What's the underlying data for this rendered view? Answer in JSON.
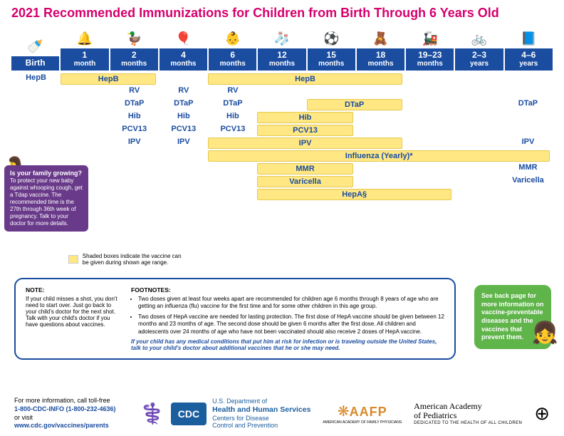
{
  "title": "2021 Recommended Immunizations for Children from Birth Through 6 Years Old",
  "colors": {
    "title": "#d6006d",
    "header_bg": "#1a4ca0",
    "header_fg": "#ffffff",
    "vaccine_text": "#1a4ca0",
    "bar_fill": "#ffe784",
    "bar_border": "#e6c94f",
    "callout_left_bg": "#6a3a8a",
    "callout_right_bg": "#5fb44a",
    "note_border": "#1a4ca0",
    "note_em": "#1a4ca0",
    "footer_link": "#1a4ca0",
    "cdc_bg": "#1b5e9e",
    "aafp": "#d88a2a"
  },
  "layout": {
    "columns": 11
  },
  "age_headers": [
    {
      "label": "Birth",
      "label2": "",
      "icon": "🍼"
    },
    {
      "label": "1",
      "label2": "month",
      "icon": "🔔"
    },
    {
      "label": "2",
      "label2": "months",
      "icon": "🦆"
    },
    {
      "label": "4",
      "label2": "months",
      "icon": "🎈"
    },
    {
      "label": "6",
      "label2": "months",
      "icon": "👶"
    },
    {
      "label": "12",
      "label2": "months",
      "icon": "🧦"
    },
    {
      "label": "15",
      "label2": "months",
      "icon": "⚽"
    },
    {
      "label": "18",
      "label2": "months",
      "icon": "🧸"
    },
    {
      "label": "19–23",
      "label2": "months",
      "icon": "🚂"
    },
    {
      "label": "2–3",
      "label2": "years",
      "icon": "🚲"
    },
    {
      "label": "4–6",
      "label2": "years",
      "icon": "📘"
    }
  ],
  "rows": [
    {
      "items": [
        {
          "type": "point",
          "col": 0,
          "label": "HepB"
        },
        {
          "type": "bar",
          "start": 1,
          "end": 3,
          "label": "HepB"
        },
        {
          "type": "bar",
          "start": 4,
          "end": 8,
          "label": "HepB"
        }
      ]
    },
    {
      "items": [
        {
          "type": "point",
          "col": 2,
          "label": "RV"
        },
        {
          "type": "point",
          "col": 3,
          "label": "RV"
        },
        {
          "type": "point",
          "col": 4,
          "label": "RV"
        }
      ]
    },
    {
      "items": [
        {
          "type": "point",
          "col": 2,
          "label": "DTaP"
        },
        {
          "type": "point",
          "col": 3,
          "label": "DTaP"
        },
        {
          "type": "point",
          "col": 4,
          "label": "DTaP"
        },
        {
          "type": "bar",
          "start": 6,
          "end": 8,
          "label": "DTaP"
        },
        {
          "type": "point",
          "col": 10,
          "label": "DTaP"
        }
      ]
    },
    {
      "items": [
        {
          "type": "point",
          "col": 2,
          "label": "Hib"
        },
        {
          "type": "point",
          "col": 3,
          "label": "Hib"
        },
        {
          "type": "point",
          "col": 4,
          "label": "Hib"
        },
        {
          "type": "bar",
          "start": 5,
          "end": 7,
          "label": "Hib"
        }
      ]
    },
    {
      "items": [
        {
          "type": "point",
          "col": 2,
          "label": "PCV13"
        },
        {
          "type": "point",
          "col": 3,
          "label": "PCV13"
        },
        {
          "type": "point",
          "col": 4,
          "label": "PCV13"
        },
        {
          "type": "bar",
          "start": 5,
          "end": 7,
          "label": "PCV13"
        }
      ]
    },
    {
      "items": [
        {
          "type": "point",
          "col": 2,
          "label": "IPV"
        },
        {
          "type": "point",
          "col": 3,
          "label": "IPV"
        },
        {
          "type": "bar",
          "start": 4,
          "end": 8,
          "label": "IPV"
        },
        {
          "type": "point",
          "col": 10,
          "label": "IPV"
        }
      ]
    },
    {
      "items": [
        {
          "type": "bar",
          "start": 4,
          "end": 11,
          "label": "Influenza (Yearly)*"
        }
      ]
    },
    {
      "items": [
        {
          "type": "bar",
          "start": 5,
          "end": 7,
          "label": "MMR"
        },
        {
          "type": "point",
          "col": 10,
          "label": "MMR"
        }
      ]
    },
    {
      "items": [
        {
          "type": "bar",
          "start": 5,
          "end": 7,
          "label": "Varicella"
        },
        {
          "type": "point",
          "col": 10,
          "label": "Varicella"
        }
      ]
    },
    {
      "items": [
        {
          "type": "bar",
          "start": 5,
          "end": 9,
          "label": "HepA§"
        }
      ]
    }
  ],
  "callout_left": {
    "title": "Is your family growing?",
    "body": "To protect your new baby against whooping cough, get a Tdap vaccine. The recommended time is the 27th through 36th week of pregnancy. Talk to your doctor for more details."
  },
  "legend": "Shaded boxes indicate the vaccine can be given during shown age range.",
  "notebox": {
    "note_title": "NOTE:",
    "note_body": "If your child misses a shot, you don't need to start over. Just go back to your child's doctor for the next shot. Talk with your child's doctor if you have questions about vaccines.",
    "footnotes_title": "FOOTNOTES:",
    "footnotes": [
      "Two doses given at least four weeks apart are recommended for children age 6 months through 8 years of age who are getting an influenza (flu) vaccine for the first time and for some other children in this age group.",
      "Two doses of HepA vaccine are needed for lasting protection. The first dose of HepA vaccine should be given between 12 months and 23 months of age. The second dose should be given 6 months after the first dose. All children and adolescents over 24 months of age who have not been vaccinated should also receive 2 doses of HepA vaccine."
    ],
    "em": "If your child has any medical conditions that put him at risk for infection or is traveling outside the United States, talk to your child's doctor about additional vaccines that he or she may need."
  },
  "callout_right": "See back page for more information on vaccine-preventable diseases and the vaccines that prevent them.",
  "footer": {
    "info1": "For more information, call toll-free",
    "info2": "1-800-CDC-INFO (1-800-232-4636)",
    "info3": "or visit",
    "info4": "www.cdc.gov/vaccines/parents",
    "cdc": "CDC",
    "hhs1": "U.S. Department of",
    "hhs2": "Health and Human Services",
    "hhs3": "Centers for Disease",
    "hhs4": "Control and Prevention",
    "aafp": "AAFP",
    "aafp_sub": "AMERICAN ACADEMY OF FAMILY PHYSICIANS",
    "aap1": "American Academy",
    "aap2": "of Pediatrics",
    "aap3": "DEDICATED TO THE HEALTH OF ALL CHILDREN"
  }
}
